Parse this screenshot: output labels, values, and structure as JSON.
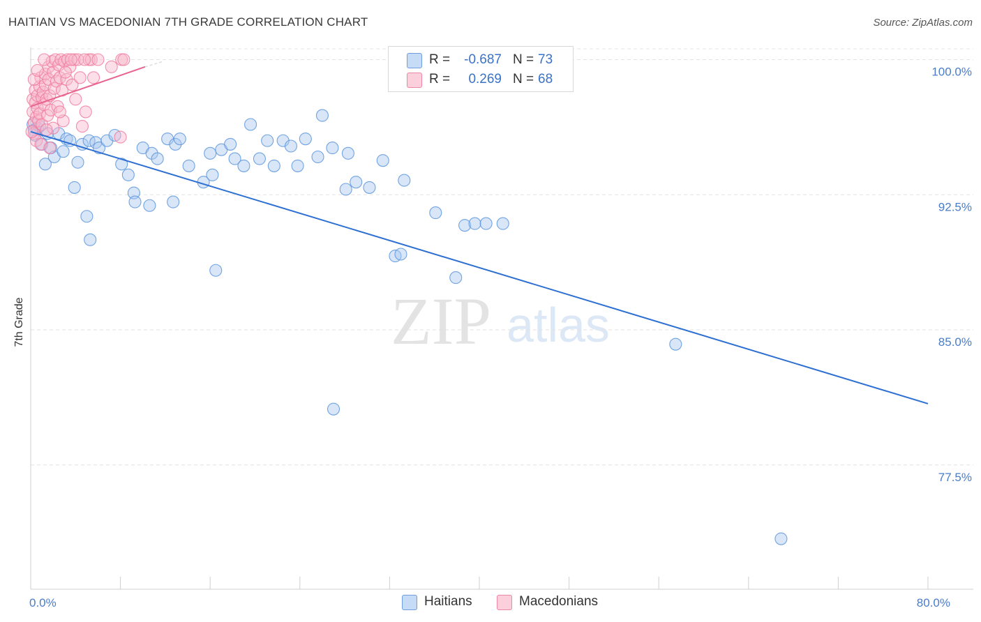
{
  "header": {
    "title": "HAITIAN VS MACEDONIAN 7TH GRADE CORRELATION CHART",
    "source": "Source: ZipAtlas.com"
  },
  "watermark": {
    "zip": "ZIP",
    "atlas": "atlas"
  },
  "legend": {
    "rows": [
      {
        "r_label": "R =",
        "r_value": "-0.687",
        "n_label": "N =",
        "n_value": "73",
        "color": "#a9c8f0"
      },
      {
        "r_label": "R =",
        "r_value": "0.269",
        "n_label": "N =",
        "n_value": "68",
        "color": "#f8b8cc"
      }
    ],
    "bottom": [
      {
        "label": "Haitians",
        "color": "#a9c8f0"
      },
      {
        "label": "Macedonians",
        "color": "#f8b8cc"
      }
    ]
  },
  "chart_data": {
    "type": "scatter",
    "title": "HAITIAN VS MACEDONIAN 7TH GRADE CORRELATION CHART",
    "xlabel": "",
    "ylabel": "7th Grade",
    "xlim": [
      0,
      80
    ],
    "ylim": [
      70.6,
      100.6
    ],
    "x_tick_labels": [
      {
        "value": 0,
        "label": "0.0%"
      },
      {
        "value": 80,
        "label": "80.0%"
      }
    ],
    "y_tick_labels": [
      {
        "value": 100,
        "label": "100.0%"
      },
      {
        "value": 92.5,
        "label": "92.5%"
      },
      {
        "value": 85,
        "label": "85.0%"
      },
      {
        "value": 77.5,
        "label": "77.5%"
      }
    ],
    "grid": true,
    "series": [
      {
        "name": "Haitians",
        "color": "#5b95de",
        "fill": "#a9c8f0",
        "trendline": {
          "x": [
            0,
            80
          ],
          "y": [
            96.0,
            80.9
          ],
          "color": "#2d6fd2"
        },
        "points": [
          [
            0.2,
            96.4
          ],
          [
            0.3,
            96.1
          ],
          [
            0.4,
            95.8
          ],
          [
            0.6,
            96.2
          ],
          [
            0.8,
            96.3
          ],
          [
            1.0,
            95.3
          ],
          [
            1.3,
            94.2
          ],
          [
            1.5,
            95.9
          ],
          [
            1.8,
            95.1
          ],
          [
            2.1,
            94.6
          ],
          [
            2.5,
            95.9
          ],
          [
            2.9,
            94.9
          ],
          [
            3.2,
            95.6
          ],
          [
            3.5,
            95.5
          ],
          [
            4.2,
            94.3
          ],
          [
            4.6,
            95.3
          ],
          [
            5.2,
            95.5
          ],
          [
            5.8,
            95.4
          ],
          [
            6.1,
            95.1
          ],
          [
            6.8,
            95.5
          ],
          [
            7.5,
            95.8
          ],
          [
            8.1,
            94.2
          ],
          [
            8.7,
            93.6
          ],
          [
            9.2,
            92.6
          ],
          [
            10.0,
            95.1
          ],
          [
            10.8,
            94.8
          ],
          [
            11.3,
            94.5
          ],
          [
            12.2,
            95.6
          ],
          [
            12.9,
            95.3
          ],
          [
            13.3,
            95.6
          ],
          [
            14.1,
            94.1
          ],
          [
            15.4,
            93.2
          ],
          [
            16.0,
            94.8
          ],
          [
            16.2,
            93.6
          ],
          [
            17.0,
            95.0
          ],
          [
            17.8,
            95.3
          ],
          [
            18.2,
            94.5
          ],
          [
            19.0,
            94.1
          ],
          [
            19.6,
            96.4
          ],
          [
            20.4,
            94.5
          ],
          [
            21.1,
            95.5
          ],
          [
            21.7,
            94.1
          ],
          [
            22.5,
            95.5
          ],
          [
            23.2,
            95.2
          ],
          [
            23.8,
            94.1
          ],
          [
            24.5,
            95.6
          ],
          [
            25.6,
            94.6
          ],
          [
            26.0,
            96.9
          ],
          [
            26.9,
            95.1
          ],
          [
            28.1,
            92.8
          ],
          [
            28.3,
            94.8
          ],
          [
            29.0,
            93.2
          ],
          [
            30.2,
            92.9
          ],
          [
            31.4,
            94.4
          ],
          [
            32.5,
            89.1
          ],
          [
            33.0,
            89.2
          ],
          [
            33.3,
            93.3
          ],
          [
            36.1,
            91.5
          ],
          [
            37.9,
            87.9
          ],
          [
            38.7,
            90.8
          ],
          [
            39.6,
            90.9
          ],
          [
            40.6,
            90.9
          ],
          [
            42.1,
            90.9
          ],
          [
            57.5,
            84.2
          ],
          [
            66.9,
            73.4
          ],
          [
            16.5,
            88.3
          ],
          [
            9.3,
            92.1
          ],
          [
            10.6,
            91.9
          ],
          [
            12.7,
            92.1
          ],
          [
            5.3,
            90.0
          ],
          [
            5.0,
            91.3
          ],
          [
            3.9,
            92.9
          ],
          [
            27.0,
            80.6
          ]
        ]
      },
      {
        "name": "Macedonians",
        "color": "#f07ca0",
        "fill": "#f8b8cc",
        "trendline": {
          "x": [
            0,
            10.2
          ],
          "y": [
            97.4,
            99.6
          ],
          "color": "#e8638d",
          "dash_x": [
            10.2,
            11.8
          ],
          "dash_y": [
            99.6,
            99.9
          ]
        },
        "points": [
          [
            0.2,
            97.8
          ],
          [
            0.2,
            97.1
          ],
          [
            0.3,
            96.5
          ],
          [
            0.3,
            95.9
          ],
          [
            0.4,
            97.6
          ],
          [
            0.4,
            98.3
          ],
          [
            0.5,
            96.8
          ],
          [
            0.6,
            98.0
          ],
          [
            0.6,
            97.3
          ],
          [
            0.7,
            96.6
          ],
          [
            0.8,
            98.5
          ],
          [
            0.8,
            97.0
          ],
          [
            0.9,
            99.0
          ],
          [
            1.0,
            97.9
          ],
          [
            1.0,
            96.4
          ],
          [
            1.1,
            98.2
          ],
          [
            1.2,
            97.5
          ],
          [
            1.3,
            99.2
          ],
          [
            1.3,
            98.6
          ],
          [
            1.4,
            97.8
          ],
          [
            1.5,
            96.9
          ],
          [
            1.6,
            99.6
          ],
          [
            1.6,
            98.9
          ],
          [
            1.7,
            98.0
          ],
          [
            1.8,
            97.2
          ],
          [
            1.9,
            99.9
          ],
          [
            2.0,
            99.3
          ],
          [
            2.1,
            98.4
          ],
          [
            2.2,
            100.0
          ],
          [
            2.3,
            98.8
          ],
          [
            2.4,
            97.4
          ],
          [
            2.5,
            99.7
          ],
          [
            2.6,
            99.0
          ],
          [
            2.7,
            100.0
          ],
          [
            2.8,
            98.3
          ],
          [
            2.9,
            96.6
          ],
          [
            3.0,
            99.9
          ],
          [
            3.2,
            98.9
          ],
          [
            3.3,
            100.0
          ],
          [
            3.5,
            99.6
          ],
          [
            3.7,
            98.6
          ],
          [
            3.9,
            100.0
          ],
          [
            4.0,
            97.8
          ],
          [
            4.2,
            100.0
          ],
          [
            4.4,
            99.0
          ],
          [
            4.6,
            96.3
          ],
          [
            4.9,
            97.1
          ],
          [
            5.2,
            100.0
          ],
          [
            5.4,
            100.0
          ],
          [
            8.1,
            100.0
          ],
          [
            8.3,
            100.0
          ],
          [
            0.5,
            95.5
          ],
          [
            0.9,
            95.3
          ],
          [
            1.7,
            95.1
          ],
          [
            2.0,
            96.2
          ],
          [
            6.0,
            100.0
          ],
          [
            0.3,
            98.9
          ],
          [
            0.6,
            99.4
          ],
          [
            1.2,
            100.0
          ],
          [
            3.6,
            100.0
          ],
          [
            4.8,
            100.0
          ],
          [
            7.2,
            99.6
          ],
          [
            1.4,
            96.1
          ],
          [
            0.1,
            96.0
          ],
          [
            2.6,
            97.1
          ],
          [
            3.1,
            99.3
          ],
          [
            5.6,
            99.0
          ],
          [
            8.0,
            95.7
          ]
        ]
      }
    ]
  }
}
